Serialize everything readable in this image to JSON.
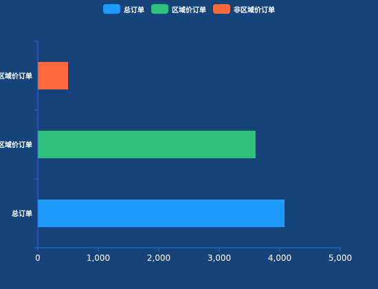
{
  "chart_data": {
    "type": "bar",
    "orientation": "horizontal",
    "categories": [
      "总订单",
      "区域价订单",
      "非区域价订单"
    ],
    "series": [
      {
        "name": "总订单",
        "values": [
          4080,
          null,
          null
        ],
        "color": "#1e9bff"
      },
      {
        "name": "区域价订单",
        "values": [
          null,
          3600,
          null
        ],
        "color": "#2fc27a"
      },
      {
        "name": "非区域价订单",
        "values": [
          null,
          null,
          500
        ],
        "color": "#ff6a3d"
      }
    ],
    "xlim": [
      0,
      5000
    ],
    "xticks": [
      0,
      1000,
      2000,
      3000,
      4000,
      5000
    ],
    "xtick_labels": [
      "0",
      "1,000",
      "2,000",
      "3,000",
      "4,000",
      "5,000"
    ],
    "title": "",
    "xlabel": "",
    "ylabel": "",
    "grid": false,
    "legend_position": "top-center",
    "axis_color": "#2a6fd6",
    "background": "#16437a"
  }
}
